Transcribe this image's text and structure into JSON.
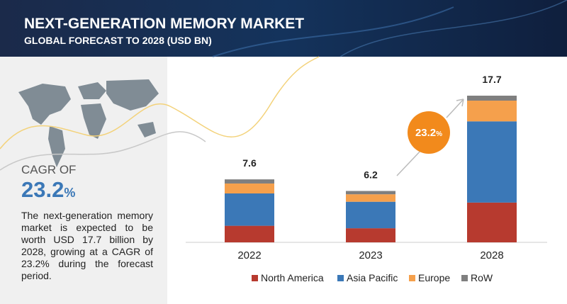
{
  "chart_data": {
    "type": "bar",
    "stacked": true,
    "title": "NEXT-GENERATION MEMORY MARKET",
    "subtitle": "GLOBAL FORECAST TO 2028 (USD BN)",
    "categories": [
      "2022",
      "2023",
      "2028"
    ],
    "totals": [
      7.6,
      6.2,
      17.7
    ],
    "series": [
      {
        "name": "North America",
        "color": "#b73a2f",
        "values": [
          2.0,
          1.7,
          4.8
        ]
      },
      {
        "name": "Asia Pacific",
        "color": "#3b78b7",
        "values": [
          3.9,
          3.2,
          9.8
        ]
      },
      {
        "name": "Europe",
        "color": "#f5a04c",
        "values": [
          1.2,
          0.9,
          2.5
        ]
      },
      {
        "name": "RoW",
        "color": "#7f7f7f",
        "values": [
          0.5,
          0.4,
          0.6
        ]
      }
    ],
    "bubble_value": "23.2",
    "bubble_unit": "%"
  },
  "cagr_heading": "CAGR OF",
  "cagr_value": "23.2",
  "cagr_unit": "%",
  "description": "The next-generation memory market is expected to be worth USD 17.7 billion by 2028, growing at a CAGR of 23.2% during the forecast period."
}
